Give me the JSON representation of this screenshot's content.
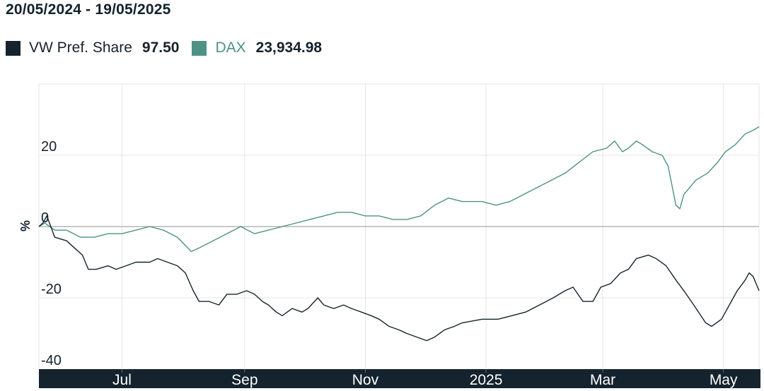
{
  "header": {
    "date_range": "20/05/2024 - 19/05/2025"
  },
  "legend": [
    {
      "name": "VW Pref. Share",
      "value": "97.50",
      "color": "#14232e"
    },
    {
      "name": "DAX",
      "value": "23,934.98",
      "color": "#4e9187"
    }
  ],
  "chart_data": {
    "type": "line",
    "ylabel": "%",
    "ylim": [
      -40,
      40
    ],
    "yticks": [
      20,
      0,
      -20,
      -40
    ],
    "grid": true,
    "legend_position": "top-left",
    "x_tick_labels": [
      "Jul",
      "Sep",
      "Nov",
      "2025",
      "Mar",
      "May"
    ],
    "x_tick_dates": [
      "2024-07-01",
      "2024-09-01",
      "2024-11-01",
      "2025-01-01",
      "2025-03-01",
      "2025-05-01"
    ],
    "x_range": [
      "2024-05-20",
      "2025-05-19"
    ],
    "series": [
      {
        "name": "VW Pref. Share",
        "color": "#14232e",
        "points": [
          [
            "2024-05-20",
            0
          ],
          [
            "2024-05-22",
            1
          ],
          [
            "2024-05-24",
            3
          ],
          [
            "2024-05-28",
            -3
          ],
          [
            "2024-06-03",
            -4
          ],
          [
            "2024-06-07",
            -6
          ],
          [
            "2024-06-11",
            -8
          ],
          [
            "2024-06-14",
            -12
          ],
          [
            "2024-06-18",
            -12
          ],
          [
            "2024-06-24",
            -11
          ],
          [
            "2024-06-28",
            -12
          ],
          [
            "2024-07-03",
            -11
          ],
          [
            "2024-07-08",
            -10
          ],
          [
            "2024-07-15",
            -10
          ],
          [
            "2024-07-19",
            -9
          ],
          [
            "2024-07-24",
            -10
          ],
          [
            "2024-07-29",
            -11
          ],
          [
            "2024-08-02",
            -13
          ],
          [
            "2024-08-06",
            -18
          ],
          [
            "2024-08-09",
            -21
          ],
          [
            "2024-08-14",
            -21
          ],
          [
            "2024-08-19",
            -22
          ],
          [
            "2024-08-23",
            -19
          ],
          [
            "2024-08-28",
            -19
          ],
          [
            "2024-09-02",
            -18
          ],
          [
            "2024-09-06",
            -19
          ],
          [
            "2024-09-10",
            -21
          ],
          [
            "2024-09-13",
            -22
          ],
          [
            "2024-09-17",
            -24
          ],
          [
            "2024-09-20",
            -25
          ],
          [
            "2024-09-25",
            -23
          ],
          [
            "2024-09-30",
            -24
          ],
          [
            "2024-10-03",
            -23
          ],
          [
            "2024-10-08",
            -20
          ],
          [
            "2024-10-11",
            -22
          ],
          [
            "2024-10-16",
            -23
          ],
          [
            "2024-10-21",
            -22
          ],
          [
            "2024-10-25",
            -23
          ],
          [
            "2024-10-30",
            -24
          ],
          [
            "2024-11-04",
            -25
          ],
          [
            "2024-11-08",
            -26
          ],
          [
            "2024-11-13",
            -28
          ],
          [
            "2024-11-18",
            -29
          ],
          [
            "2024-11-22",
            -30
          ],
          [
            "2024-11-27",
            -31
          ],
          [
            "2024-12-02",
            -32
          ],
          [
            "2024-12-06",
            -31
          ],
          [
            "2024-12-11",
            -29
          ],
          [
            "2024-12-16",
            -28
          ],
          [
            "2024-12-20",
            -27
          ],
          [
            "2024-12-30",
            -26
          ],
          [
            "2025-01-07",
            -26
          ],
          [
            "2025-01-14",
            -25
          ],
          [
            "2025-01-21",
            -24
          ],
          [
            "2025-01-28",
            -22
          ],
          [
            "2025-02-04",
            -20
          ],
          [
            "2025-02-10",
            -18
          ],
          [
            "2025-02-14",
            -17
          ],
          [
            "2025-02-19",
            -21
          ],
          [
            "2025-02-24",
            -21
          ],
          [
            "2025-02-28",
            -17
          ],
          [
            "2025-03-05",
            -16
          ],
          [
            "2025-03-10",
            -13
          ],
          [
            "2025-03-14",
            -12
          ],
          [
            "2025-03-18",
            -9
          ],
          [
            "2025-03-24",
            -8
          ],
          [
            "2025-03-28",
            -9
          ],
          [
            "2025-04-02",
            -11
          ],
          [
            "2025-04-07",
            -15
          ],
          [
            "2025-04-11",
            -18
          ],
          [
            "2025-04-16",
            -22
          ],
          [
            "2025-04-22",
            -27
          ],
          [
            "2025-04-25",
            -28
          ],
          [
            "2025-04-30",
            -26
          ],
          [
            "2025-05-05",
            -21
          ],
          [
            "2025-05-08",
            -18
          ],
          [
            "2025-05-12",
            -15
          ],
          [
            "2025-05-14",
            -13
          ],
          [
            "2025-05-16",
            -14
          ],
          [
            "2025-05-19",
            -18
          ]
        ]
      },
      {
        "name": "DAX",
        "color": "#4e9187",
        "points": [
          [
            "2024-05-20",
            0
          ],
          [
            "2024-05-23",
            1
          ],
          [
            "2024-05-28",
            -1
          ],
          [
            "2024-06-03",
            -1
          ],
          [
            "2024-06-10",
            -3
          ],
          [
            "2024-06-17",
            -3
          ],
          [
            "2024-06-24",
            -2
          ],
          [
            "2024-07-01",
            -2
          ],
          [
            "2024-07-08",
            -1
          ],
          [
            "2024-07-15",
            0
          ],
          [
            "2024-07-22",
            -1
          ],
          [
            "2024-07-29",
            -3
          ],
          [
            "2024-08-05",
            -7
          ],
          [
            "2024-08-09",
            -6
          ],
          [
            "2024-08-16",
            -4
          ],
          [
            "2024-08-23",
            -2
          ],
          [
            "2024-08-30",
            0
          ],
          [
            "2024-09-06",
            -2
          ],
          [
            "2024-09-13",
            -1
          ],
          [
            "2024-09-20",
            0
          ],
          [
            "2024-09-27",
            1
          ],
          [
            "2024-10-04",
            2
          ],
          [
            "2024-10-11",
            3
          ],
          [
            "2024-10-18",
            4
          ],
          [
            "2024-10-25",
            4
          ],
          [
            "2024-11-01",
            3
          ],
          [
            "2024-11-08",
            3
          ],
          [
            "2024-11-15",
            2
          ],
          [
            "2024-11-22",
            2
          ],
          [
            "2024-11-29",
            3
          ],
          [
            "2024-12-06",
            6
          ],
          [
            "2024-12-13",
            8
          ],
          [
            "2024-12-20",
            7
          ],
          [
            "2024-12-30",
            7
          ],
          [
            "2025-01-06",
            6
          ],
          [
            "2025-01-13",
            7
          ],
          [
            "2025-01-20",
            9
          ],
          [
            "2025-01-27",
            11
          ],
          [
            "2025-02-03",
            13
          ],
          [
            "2025-02-10",
            15
          ],
          [
            "2025-02-17",
            18
          ],
          [
            "2025-02-24",
            21
          ],
          [
            "2025-03-03",
            22
          ],
          [
            "2025-03-07",
            24
          ],
          [
            "2025-03-11",
            21
          ],
          [
            "2025-03-14",
            22
          ],
          [
            "2025-03-18",
            24
          ],
          [
            "2025-03-21",
            23
          ],
          [
            "2025-03-26",
            21
          ],
          [
            "2025-03-31",
            20
          ],
          [
            "2025-04-03",
            17
          ],
          [
            "2025-04-07",
            6
          ],
          [
            "2025-04-09",
            5
          ],
          [
            "2025-04-11",
            9
          ],
          [
            "2025-04-17",
            13
          ],
          [
            "2025-04-23",
            15
          ],
          [
            "2025-04-28",
            18
          ],
          [
            "2025-05-02",
            21
          ],
          [
            "2025-05-07",
            23
          ],
          [
            "2025-05-12",
            26
          ],
          [
            "2025-05-16",
            27
          ],
          [
            "2025-05-19",
            28
          ]
        ]
      }
    ]
  }
}
